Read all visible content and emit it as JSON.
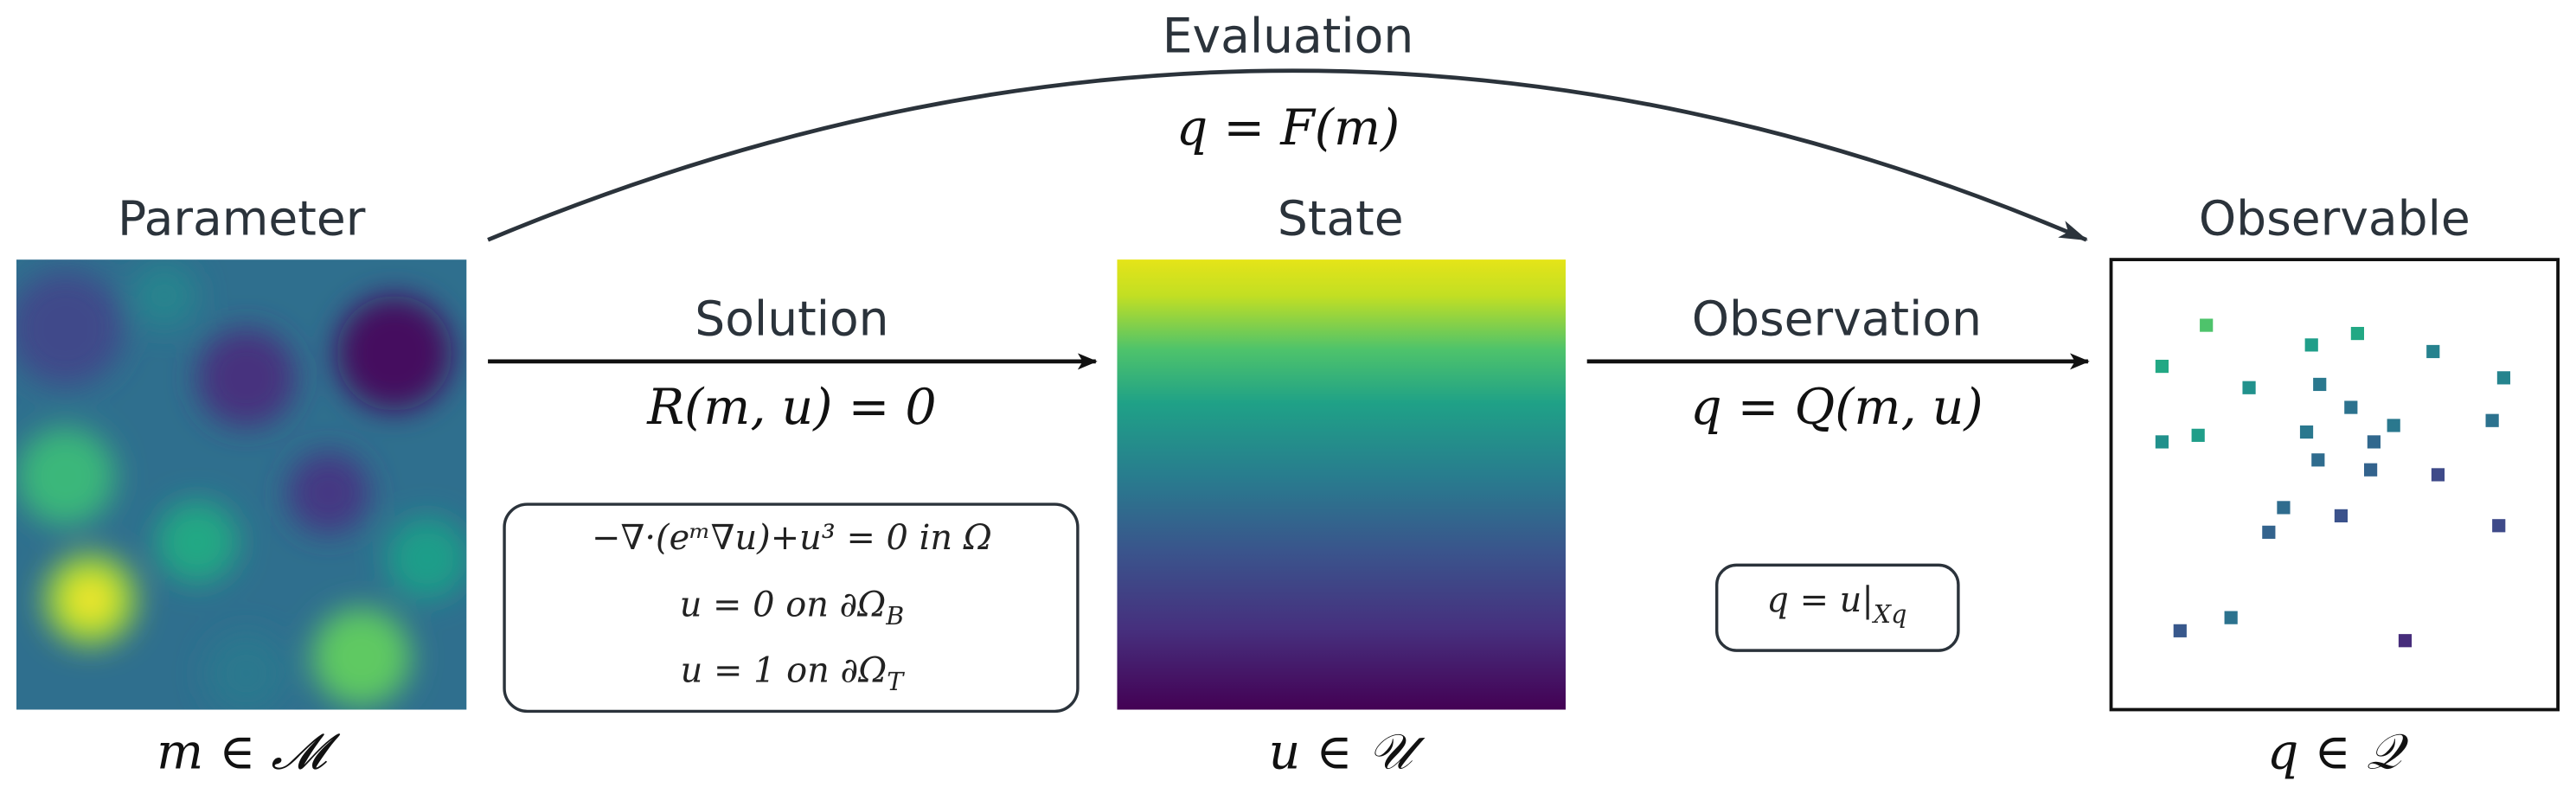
{
  "evaluation": {
    "label": "Evaluation",
    "equation": "q = F(m)"
  },
  "parameter": {
    "title": "Parameter",
    "space": "m ∈ 𝓜"
  },
  "state": {
    "title": "State",
    "space": "u ∈ 𝒰"
  },
  "observable": {
    "title": "Observable",
    "space": "q ∈ 𝒬"
  },
  "solution": {
    "label": "Solution",
    "equation": "R(m, u) = 0",
    "pde": [
      {
        "main": "−∇·(eᵐ∇u)+u³ = 0 in Ω",
        "sub": ""
      },
      {
        "main": "u = 0 on ∂Ω",
        "sub": "B"
      },
      {
        "main": "u = 1 on ∂Ω",
        "sub": "T"
      }
    ]
  },
  "observation": {
    "label": "Observation",
    "equation": "q = Q(m, u)",
    "definition": {
      "main": "q = u|",
      "sub": "Xq"
    }
  }
}
